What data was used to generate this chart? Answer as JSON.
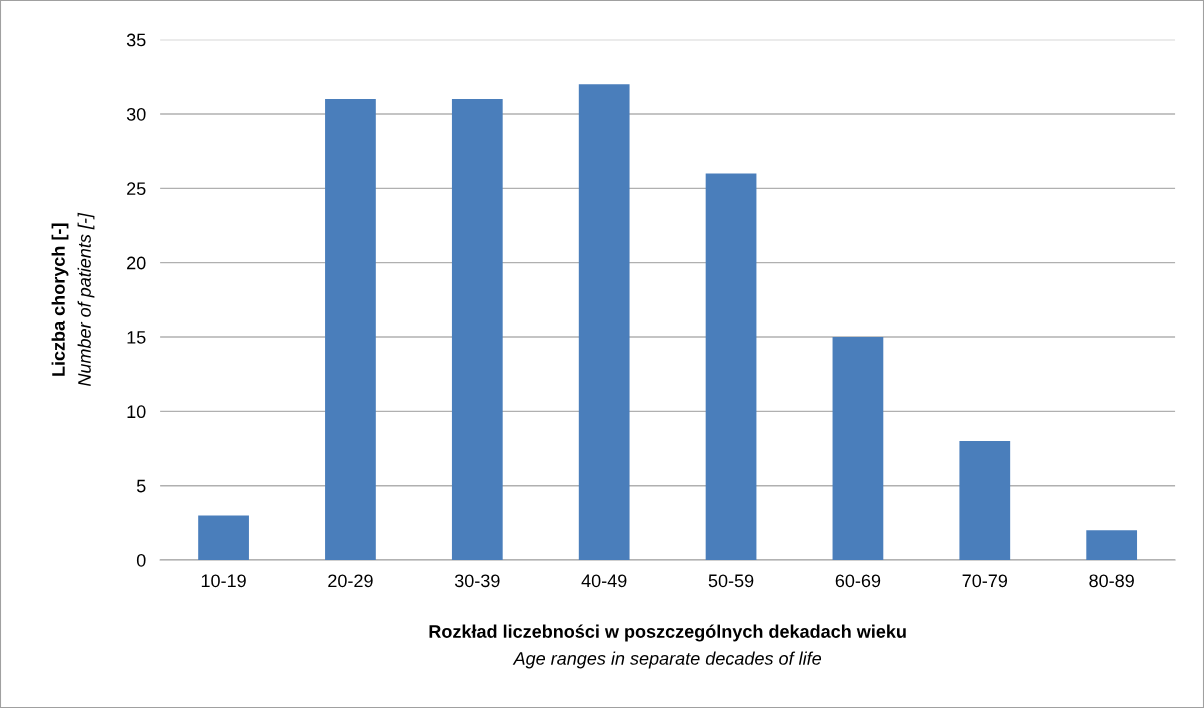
{
  "chart_data": {
    "type": "bar",
    "categories": [
      "10-19",
      "20-29",
      "30-39",
      "40-49",
      "50-59",
      "60-69",
      "70-79",
      "80-89"
    ],
    "values": [
      3,
      31,
      31,
      32,
      26,
      15,
      8,
      2
    ],
    "color": "#4a7ebb",
    "xlabel": "Rozkład liczebności w poszczególnych dekadach wieku\nAge ranges in separate decades of life",
    "ylabel": "Liczba chorych [-]\nNumber of patients [-]",
    "ylim": [
      0,
      35
    ],
    "yticks": [
      0,
      5,
      10,
      15,
      20,
      25,
      30,
      35
    ],
    "grid": "y",
    "legend": false
  }
}
